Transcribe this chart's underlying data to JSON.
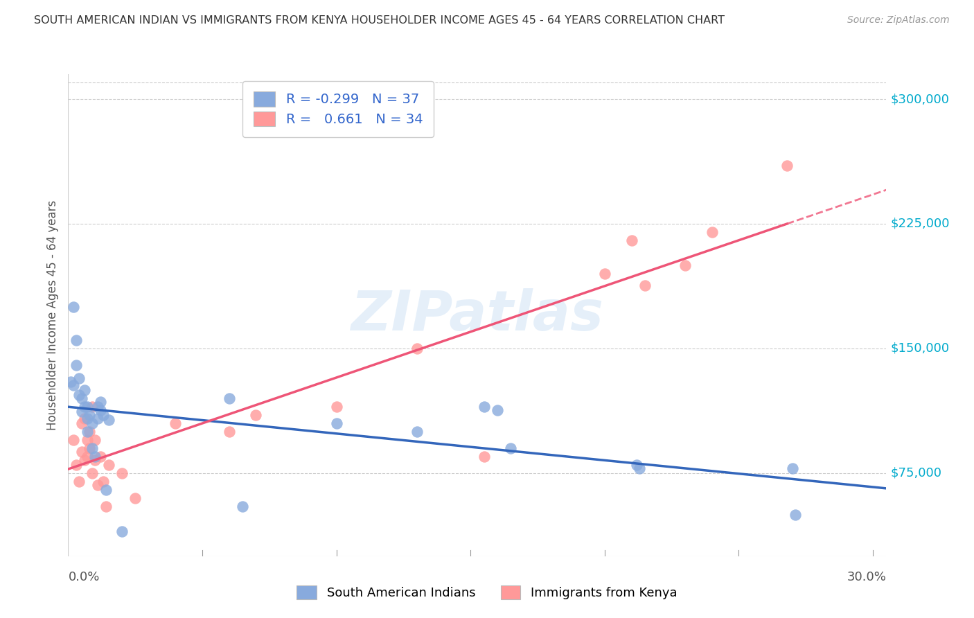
{
  "title": "SOUTH AMERICAN INDIAN VS IMMIGRANTS FROM KENYA HOUSEHOLDER INCOME AGES 45 - 64 YEARS CORRELATION CHART",
  "source": "Source: ZipAtlas.com",
  "ylabel": "Householder Income Ages 45 - 64 years",
  "ytick_labels": [
    "$75,000",
    "$150,000",
    "$225,000",
    "$300,000"
  ],
  "ytick_values": [
    75000,
    150000,
    225000,
    300000
  ],
  "ylim": [
    25000,
    315000
  ],
  "xlim": [
    0.0,
    0.305
  ],
  "blue_R": "-0.299",
  "blue_N": "37",
  "pink_R": "0.661",
  "pink_N": "34",
  "blue_color": "#88AADD",
  "pink_color": "#FF9999",
  "blue_line_color": "#3366BB",
  "pink_line_color": "#EE5577",
  "watermark": "ZIPatlas",
  "blue_scatter_x": [
    0.001,
    0.002,
    0.002,
    0.003,
    0.003,
    0.004,
    0.004,
    0.005,
    0.005,
    0.006,
    0.006,
    0.007,
    0.007,
    0.007,
    0.008,
    0.009,
    0.009,
    0.01,
    0.011,
    0.011,
    0.012,
    0.012,
    0.013,
    0.014,
    0.015,
    0.02,
    0.06,
    0.065,
    0.1,
    0.13,
    0.155,
    0.16,
    0.165,
    0.212,
    0.213,
    0.27,
    0.271
  ],
  "blue_scatter_y": [
    130000,
    175000,
    128000,
    155000,
    140000,
    132000,
    122000,
    120000,
    112000,
    125000,
    115000,
    115000,
    108000,
    100000,
    110000,
    105000,
    90000,
    85000,
    115000,
    108000,
    118000,
    113000,
    110000,
    65000,
    107000,
    40000,
    120000,
    55000,
    105000,
    100000,
    115000,
    113000,
    90000,
    80000,
    78000,
    78000,
    50000
  ],
  "pink_scatter_x": [
    0.002,
    0.003,
    0.004,
    0.005,
    0.005,
    0.006,
    0.006,
    0.007,
    0.007,
    0.008,
    0.008,
    0.009,
    0.009,
    0.01,
    0.01,
    0.011,
    0.012,
    0.013,
    0.014,
    0.015,
    0.02,
    0.025,
    0.04,
    0.06,
    0.07,
    0.1,
    0.13,
    0.155,
    0.2,
    0.21,
    0.215,
    0.23,
    0.24,
    0.268
  ],
  "pink_scatter_y": [
    95000,
    80000,
    70000,
    105000,
    88000,
    108000,
    83000,
    95000,
    85000,
    100000,
    90000,
    115000,
    75000,
    83000,
    95000,
    68000,
    85000,
    70000,
    55000,
    80000,
    75000,
    60000,
    105000,
    100000,
    110000,
    115000,
    150000,
    85000,
    195000,
    215000,
    188000,
    200000,
    220000,
    260000
  ]
}
